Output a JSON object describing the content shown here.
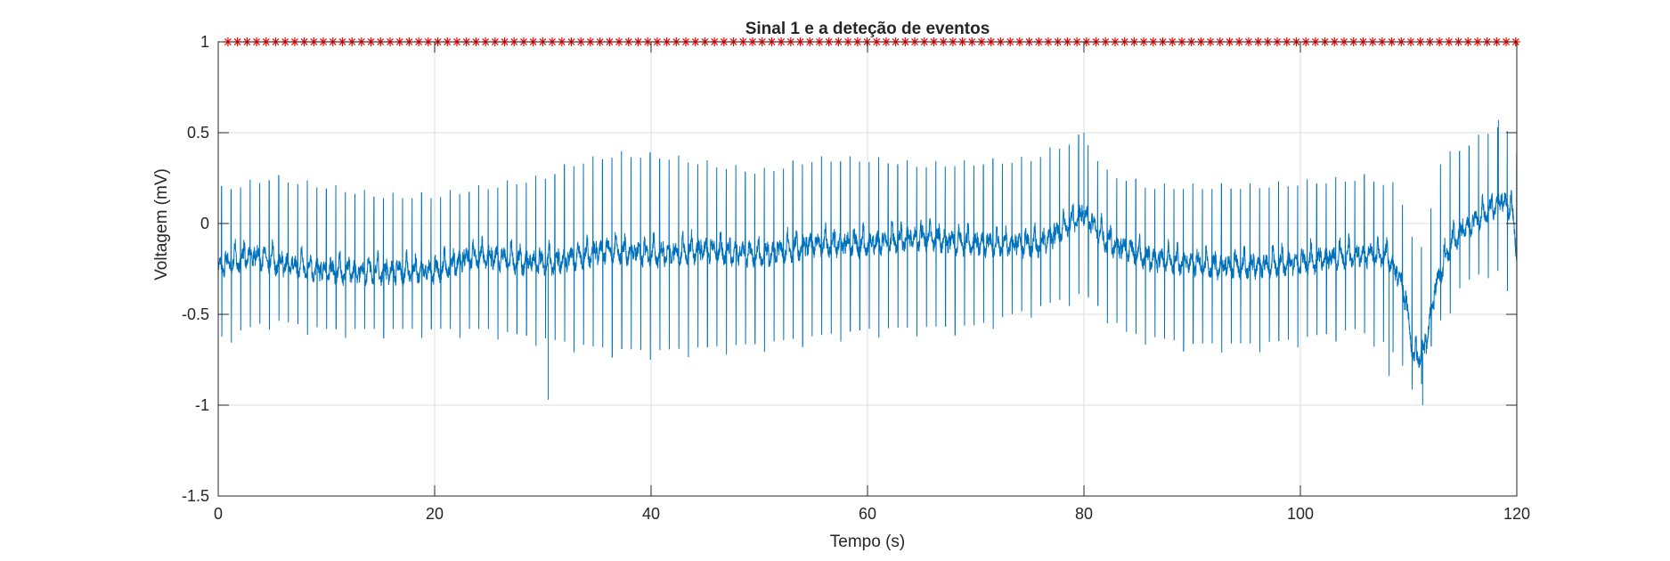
{
  "colors": {
    "signal": "#0072BD",
    "events": "#FF0000",
    "grid": "#DEDEDE",
    "axis": "#262626"
  },
  "chart_data": {
    "type": "line",
    "title": "Sinal 1 e a deteção de eventos",
    "xlabel": "Tempo (s)",
    "ylabel": "Voltagem (mV)",
    "xlim": [
      0,
      120
    ],
    "ylim": [
      -1.5,
      1
    ],
    "xticks": [
      0,
      20,
      40,
      60,
      80,
      100,
      120
    ],
    "yticks": [
      -1.5,
      -1,
      -0.5,
      0,
      0.5,
      1
    ],
    "xtick_labels": [
      "0",
      "20",
      "40",
      "60",
      "80",
      "100",
      "120"
    ],
    "ytick_labels": [
      "-1.5",
      "-1",
      "-0.5",
      "0",
      "0.5",
      "1"
    ],
    "grid": true,
    "series": [
      {
        "kind": "ecg-line",
        "baseline_curve": [
          [
            0,
            -0.25
          ],
          [
            3,
            -0.18
          ],
          [
            6,
            -0.23
          ],
          [
            10,
            -0.27
          ],
          [
            15,
            -0.27
          ],
          [
            20,
            -0.27
          ],
          [
            24,
            -0.18
          ],
          [
            28,
            -0.22
          ],
          [
            31,
            -0.22
          ],
          [
            36,
            -0.15
          ],
          [
            40,
            -0.18
          ],
          [
            45,
            -0.15
          ],
          [
            50,
            -0.18
          ],
          [
            55,
            -0.12
          ],
          [
            60,
            -0.12
          ],
          [
            65,
            -0.08
          ],
          [
            70,
            -0.12
          ],
          [
            76,
            -0.12
          ],
          [
            80,
            0.05
          ],
          [
            82,
            -0.1
          ],
          [
            86,
            -0.2
          ],
          [
            92,
            -0.24
          ],
          [
            96,
            -0.24
          ],
          [
            100,
            -0.22
          ],
          [
            105,
            -0.18
          ],
          [
            108,
            -0.18
          ],
          [
            109.5,
            -0.35
          ],
          [
            110.5,
            -0.75
          ],
          [
            111.5,
            -0.7
          ],
          [
            112.5,
            -0.35
          ],
          [
            114,
            -0.1
          ],
          [
            116,
            0.0
          ],
          [
            118.5,
            0.12
          ],
          [
            119.5,
            0.08
          ],
          [
            120,
            -0.15
          ]
        ],
        "beat_interval_s": 0.88,
        "r_peak_envelope": [
          [
            0,
            0.18
          ],
          [
            5,
            0.25
          ],
          [
            10,
            0.2
          ],
          [
            15,
            0.15
          ],
          [
            20,
            0.15
          ],
          [
            25,
            0.2
          ],
          [
            30,
            0.25
          ],
          [
            33,
            0.33
          ],
          [
            37,
            0.38
          ],
          [
            42,
            0.36
          ],
          [
            50,
            0.28
          ],
          [
            55,
            0.35
          ],
          [
            60,
            0.35
          ],
          [
            65,
            0.32
          ],
          [
            70,
            0.33
          ],
          [
            75,
            0.35
          ],
          [
            80,
            0.48
          ],
          [
            82,
            0.28
          ],
          [
            86,
            0.2
          ],
          [
            95,
            0.2
          ],
          [
            100,
            0.22
          ],
          [
            106,
            0.25
          ],
          [
            109,
            0.2
          ],
          [
            111,
            -0.2
          ],
          [
            113,
            0.35
          ],
          [
            116,
            0.45
          ],
          [
            118.5,
            0.55
          ],
          [
            120,
            0.4
          ]
        ],
        "s_trough_envelope": [
          [
            0,
            -0.65
          ],
          [
            5,
            -0.55
          ],
          [
            10,
            -0.6
          ],
          [
            15,
            -0.6
          ],
          [
            20,
            -0.6
          ],
          [
            25,
            -0.6
          ],
          [
            30,
            -0.65
          ],
          [
            35,
            -0.7
          ],
          [
            40,
            -0.72
          ],
          [
            50,
            -0.68
          ],
          [
            60,
            -0.6
          ],
          [
            70,
            -0.58
          ],
          [
            80,
            -0.4
          ],
          [
            84,
            -0.62
          ],
          [
            90,
            -0.68
          ],
          [
            96,
            -0.68
          ],
          [
            100,
            -0.65
          ],
          [
            105,
            -0.6
          ],
          [
            108,
            -0.68
          ],
          [
            110,
            -0.85
          ],
          [
            111,
            -0.95
          ],
          [
            112.5,
            -0.6
          ],
          [
            115,
            -0.35
          ],
          [
            118,
            -0.25
          ],
          [
            120,
            -0.5
          ]
        ],
        "notable_points": [
          {
            "x": 30.5,
            "y": -0.97
          },
          {
            "x": 80.0,
            "y": 0.5
          },
          {
            "x": 108.2,
            "y": -0.84
          },
          {
            "x": 111.3,
            "y": -1.0
          },
          {
            "x": 118.3,
            "y": 0.57
          }
        ]
      },
      {
        "kind": "event-markers",
        "marker": "*",
        "y": 1,
        "x_start": 0.9,
        "x_end": 119.9,
        "approx_count": 136
      }
    ]
  }
}
